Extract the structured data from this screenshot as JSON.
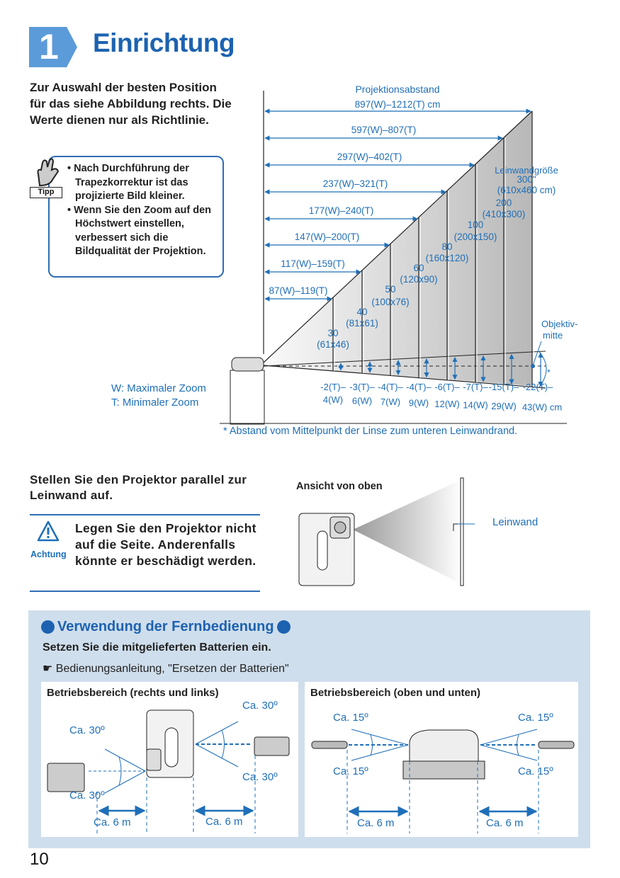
{
  "header": {
    "chapter_number": "1",
    "title": "Einrichtung"
  },
  "intro": "Zur Auswahl der besten Position für das siehe Abbildung rechts. Die Werte dienen nur als Richtlinie.",
  "tip": {
    "label": "Tipp",
    "items": [
      "Nach Durchführung der Trapezkorrektur ist das projizierte Bild kleiner.",
      "Wenn Sie den Zoom auf den Höchstwert einstellen, verbessert sich die Bildqualität der Projektion."
    ]
  },
  "diagram": {
    "distance_title": "Projektionsabstand",
    "distances": [
      "87(W)–119(T)",
      "117(W)–159(T)",
      "147(W)–200(T)",
      "177(W)–240(T)",
      "237(W)–321(T)",
      "297(W)–402(T)",
      "597(W)–807(T)",
      "897(W)–1212(T) cm"
    ],
    "screen_sizes": [
      {
        "size": "30",
        "dims": "(61x46)"
      },
      {
        "size": "40",
        "dims": "(81x61)"
      },
      {
        "size": "50",
        "dims": "(100x76)"
      },
      {
        "size": "60",
        "dims": "(120x90)"
      },
      {
        "size": "80",
        "dims": "(160x120)"
      },
      {
        "size": "100",
        "dims": "(200x150)"
      },
      {
        "size": "200",
        "dims": "(410x300)"
      },
      {
        "size": "300\"",
        "dims": "(610x460 cm)"
      }
    ],
    "screen_size_title": "Leinwandgröße",
    "offsets": [
      {
        "t": "-2(T)–",
        "w": "4(W)"
      },
      {
        "t": "-3(T)–",
        "w": "6(W)"
      },
      {
        "t": "-4(T)–",
        "w": "7(W)"
      },
      {
        "t": "-4(T)–",
        "w": "9(W)"
      },
      {
        "t": "-6(T)–",
        "w": "12(W)"
      },
      {
        "t": "-7(T)–",
        "w": "14(W)"
      },
      {
        "t": "-15(T)–",
        "w": "29(W)"
      },
      {
        "t": "-22(T)–",
        "w": "43(W) cm"
      }
    ],
    "lens_center_label": "Objektiv-\nmitte",
    "asterisk": "*",
    "legend_w": "W: Maximaler Zoom",
    "legend_t": "T: Minimaler Zoom",
    "footnote": "* Abstand vom Mittelpunkt der Linse zum unteren Leinwandrand."
  },
  "parallel": {
    "text": "Stellen Sie den Projektor parallel zur Leinwand auf.",
    "top_view_label": "Ansicht von oben",
    "screen_label": "Leinwand"
  },
  "caution": {
    "label": "Achtung",
    "text": "Legen Sie den Projektor nicht auf die Seite. Anderenfalls könnte er beschädigt werden."
  },
  "remote": {
    "title": "Verwendung der Fernbedienung",
    "subtitle": "Setzen Sie die mitgelieferten Batterien ein.",
    "reference": "Bedienungsanleitung, \"Ersetzen der Batterien\"",
    "left_panel": {
      "title": "Betriebsbereich (rechts und links)",
      "angle": "Ca. 30º",
      "distance": "Ca. 6 m"
    },
    "right_panel": {
      "title": "Betriebsbereich (oben und unten)",
      "angle": "Ca. 15º",
      "distance": "Ca. 6 m"
    }
  },
  "page_number": "10",
  "colors": {
    "accent": "#1d62b0",
    "light_accent": "#5b9bd9",
    "section_bg": "#cfdeec"
  }
}
